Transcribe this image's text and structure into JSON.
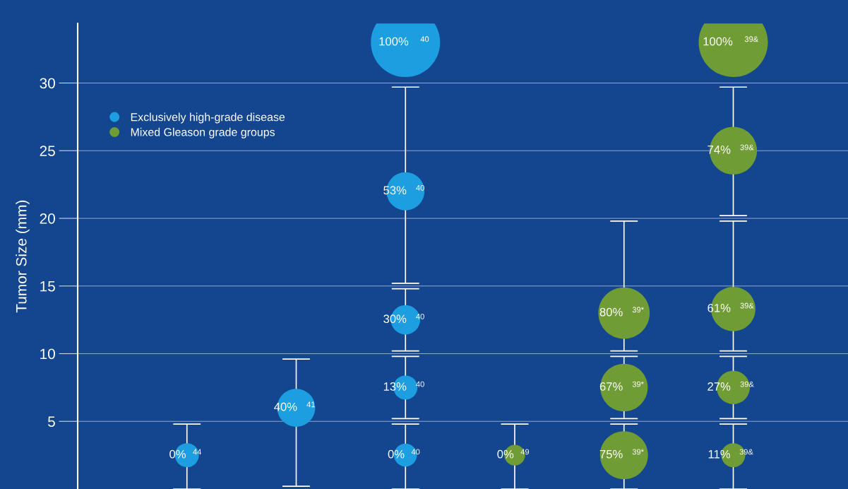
{
  "chart_data": {
    "type": "bubble",
    "ylabel": "Tumor Size (mm)",
    "categories": [
      null,
      null,
      null,
      null,
      null,
      null
    ],
    "ylim": [
      0,
      34.4
    ],
    "yticks": [
      5,
      10,
      15,
      20,
      25,
      30
    ],
    "grid": "y",
    "legend": "top left",
    "tick_labels": "y",
    "series": [
      {
        "name": "Exclusively high-grade disease",
        "color": "#1c9ee0",
        "values": [
          2.5,
          6.0,
          2.5,
          null,
          null,
          null
        ],
        "sizes": [
          0.12,
          0.3,
          0.11,
          null,
          null,
          null
        ],
        "errors": [
          [
            0,
            4.8
          ],
          [
            0.2,
            9.6
          ],
          [
            0,
            4.8
          ],
          null,
          null,
          null
        ],
        "value_labels": [
          "0%$^{44}$",
          "40%$^{41}$",
          "0%$^{40}$",
          null,
          null,
          null
        ]
      },
      {
        "color": "#1c9ee0",
        "values": [
          null,
          null,
          7.5,
          null,
          null,
          null
        ],
        "sizes": [
          null,
          null,
          0.12,
          null,
          null,
          null
        ],
        "errors": [
          null,
          null,
          [
            5.2,
            9.8
          ],
          null,
          null,
          null
        ],
        "value_labels": [
          null,
          null,
          "13%$^{40}$",
          null,
          null,
          null
        ]
      },
      {
        "color": "#1c9ee0",
        "values": [
          null,
          null,
          12.5,
          null,
          null,
          null
        ],
        "sizes": [
          null,
          null,
          0.18,
          null,
          null,
          null
        ],
        "errors": [
          null,
          null,
          [
            10.2,
            14.8
          ],
          null,
          null,
          null
        ],
        "value_labels": [
          null,
          null,
          "30%$^{40}$",
          null,
          null,
          null
        ]
      },
      {
        "color": "#1c9ee0",
        "values": [
          null,
          null,
          22.0,
          null,
          null,
          null
        ],
        "sizes": [
          null,
          null,
          0.3,
          null,
          null,
          null
        ],
        "errors": [
          null,
          null,
          [
            15.2,
            29.7
          ],
          null,
          null,
          null
        ],
        "value_labels": [
          null,
          null,
          "53%$^{40}$",
          null,
          null,
          null
        ]
      },
      {
        "color": "#1c9ee0",
        "values": [
          null,
          null,
          33.0,
          null,
          null,
          null
        ],
        "sizes": [
          null,
          null,
          1,
          null,
          null,
          null
        ],
        "value_labels": [
          null,
          null,
          "100%$^{40}$",
          null,
          null,
          null
        ]
      },
      {
        "name": "Mixed Gleason grade groups",
        "color": "#6f9c34",
        "values": [
          null,
          null,
          null,
          2.5,
          2.5,
          2.5
        ],
        "sizes": [
          null,
          null,
          null,
          0.09,
          0.48,
          0.12
        ],
        "errors": [
          null,
          null,
          null,
          [
            0,
            4.8
          ],
          [
            0,
            4.8
          ],
          [
            0,
            4.8
          ]
        ],
        "value_labels": [
          null,
          null,
          null,
          "0%$^{49}$",
          "75%$^{39*}$",
          "11%$^{39&}$"
        ]
      },
      {
        "color": "#6f9c34",
        "values": [
          null,
          null,
          null,
          null,
          7.5,
          7.5
        ],
        "sizes": [
          null,
          null,
          null,
          null,
          0.47,
          0.23
        ],
        "errors": [
          null,
          null,
          null,
          null,
          [
            5.2,
            9.8
          ],
          [
            5.2,
            9.8
          ]
        ],
        "value_labels": [
          null,
          null,
          null,
          null,
          "67%$^{39*}$",
          "27%$^{39&}$"
        ]
      },
      {
        "color": "#6f9c34",
        "values": [
          null,
          null,
          null,
          null,
          13.0,
          13.3
        ],
        "sizes": [
          null,
          null,
          null,
          null,
          0.55,
          0.41
        ],
        "errors": [
          null,
          null,
          null,
          null,
          [
            10.2,
            19.8
          ],
          [
            10.2,
            19.8
          ]
        ],
        "value_labels": [
          null,
          null,
          null,
          null,
          "80%$^{39*}$",
          "61%$^{39&}$"
        ]
      },
      {
        "color": "#6f9c34",
        "values": [
          null,
          null,
          null,
          null,
          null,
          25.0
        ],
        "sizes": [
          null,
          null,
          null,
          null,
          null,
          0.47
        ],
        "errors": [
          null,
          null,
          null,
          null,
          null,
          [
            20.2,
            29.7
          ]
        ],
        "value_labels": [
          null,
          null,
          null,
          null,
          null,
          "74%$^{39&}$"
        ]
      },
      {
        "color": "#6f9c34",
        "values": [
          null,
          null,
          null,
          null,
          null,
          33.0
        ],
        "sizes": [
          null,
          null,
          null,
          null,
          null,
          1
        ],
        "value_labels": [
          null,
          null,
          null,
          null,
          null,
          "100%$^{39&}$"
        ]
      }
    ]
  }
}
